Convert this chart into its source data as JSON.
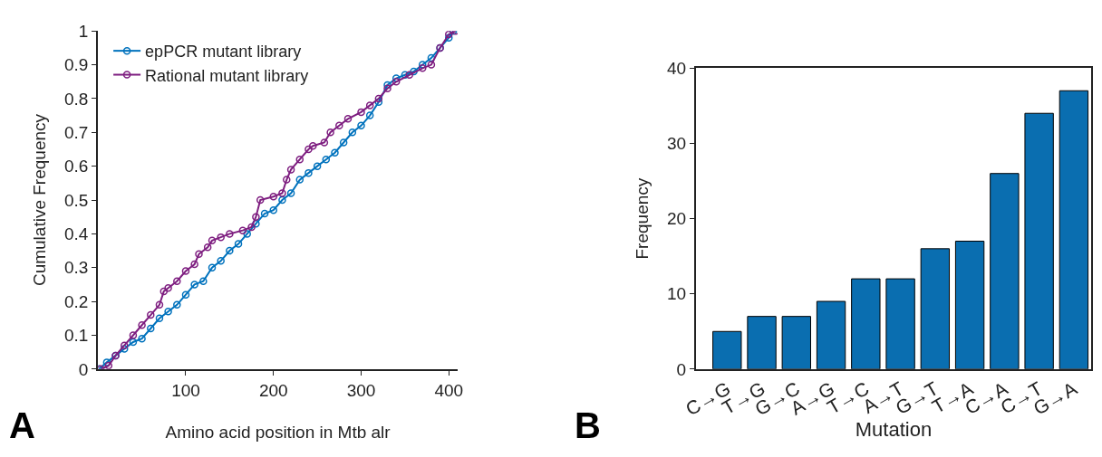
{
  "chart_data": [
    {
      "type": "line",
      "xlabel": "Amino acid position in Mtb alr",
      "ylabel": "Cumulative Frequency",
      "annotations": [
        "A"
      ],
      "xlim": [
        0,
        410
      ],
      "xticks": [
        100,
        200,
        300,
        400
      ],
      "ylim": [
        0,
        1
      ],
      "yticks": [
        0,
        0.1,
        0.2,
        0.3,
        0.4,
        0.5,
        0.6,
        0.7,
        0.8,
        0.9,
        1
      ],
      "legend": "top left",
      "marker": "circle",
      "line_style": "solid",
      "series": [
        {
          "name": "epPCR mutant library",
          "color": "#0072bd",
          "x": [
            1,
            10,
            20,
            30,
            40,
            50,
            60,
            70,
            80,
            90,
            100,
            110,
            120,
            130,
            140,
            150,
            160,
            170,
            180,
            190,
            200,
            210,
            220,
            230,
            240,
            250,
            260,
            270,
            280,
            290,
            300,
            310,
            320,
            330,
            340,
            350,
            360,
            370,
            380,
            390,
            400,
            405
          ],
          "values": [
            0,
            0.02,
            0.04,
            0.06,
            0.08,
            0.09,
            0.12,
            0.15,
            0.17,
            0.19,
            0.22,
            0.25,
            0.26,
            0.3,
            0.32,
            0.35,
            0.37,
            0.4,
            0.43,
            0.46,
            0.47,
            0.5,
            0.52,
            0.56,
            0.58,
            0.6,
            0.62,
            0.64,
            0.67,
            0.7,
            0.72,
            0.75,
            0.79,
            0.84,
            0.86,
            0.87,
            0.88,
            0.9,
            0.92,
            0.95,
            0.98,
            1
          ]
        },
        {
          "name": "Rational mutant library",
          "color": "#7e1e80",
          "x": [
            3,
            12,
            20,
            30,
            40,
            50,
            60,
            70,
            75,
            80,
            90,
            100,
            110,
            115,
            125,
            130,
            140,
            150,
            165,
            175,
            180,
            185,
            200,
            210,
            215,
            220,
            230,
            240,
            245,
            258,
            265,
            275,
            285,
            300,
            310,
            320,
            330,
            340,
            355,
            370,
            380,
            390,
            400,
            408
          ],
          "values": [
            0,
            0.01,
            0.04,
            0.07,
            0.1,
            0.13,
            0.16,
            0.19,
            0.23,
            0.24,
            0.26,
            0.29,
            0.31,
            0.34,
            0.36,
            0.38,
            0.39,
            0.4,
            0.41,
            0.42,
            0.45,
            0.5,
            0.51,
            0.52,
            0.56,
            0.59,
            0.62,
            0.65,
            0.66,
            0.67,
            0.7,
            0.72,
            0.74,
            0.76,
            0.78,
            0.8,
            0.83,
            0.85,
            0.87,
            0.89,
            0.9,
            0.95,
            0.99,
            1
          ]
        }
      ]
    },
    {
      "type": "bar",
      "xlabel": "Mutation",
      "ylabel": "Frequency",
      "annotations": [
        "B"
      ],
      "categories": [
        "C→G",
        "T→G",
        "G→C",
        "A→G",
        "T→C",
        "A→T",
        "G→T",
        "T→A",
        "C→A",
        "C→T",
        "G→A"
      ],
      "values": [
        5,
        7,
        7,
        9,
        12,
        12,
        16,
        17,
        26,
        34,
        37
      ],
      "color": "#0a6eb0",
      "ylim": [
        0,
        40
      ],
      "yticks": [
        0,
        10,
        20,
        30,
        40
      ]
    }
  ]
}
